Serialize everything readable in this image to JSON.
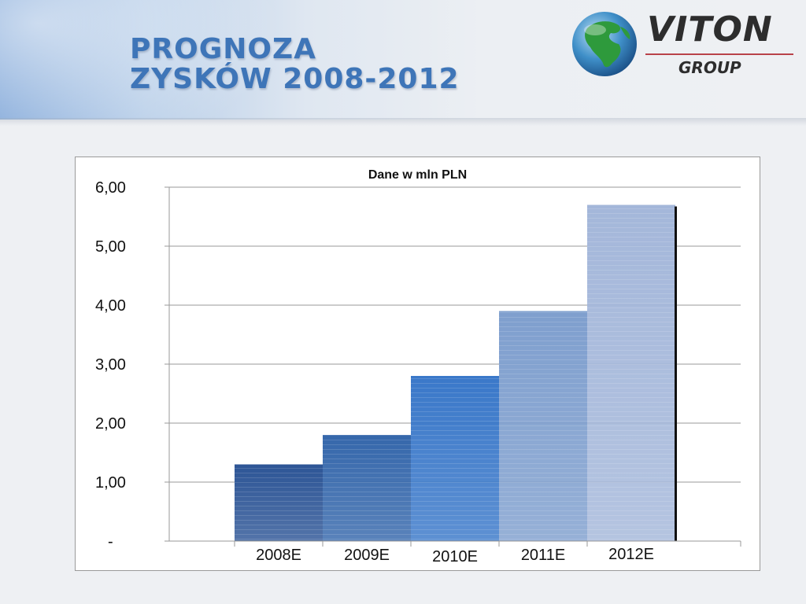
{
  "slide": {
    "title_line1": "PROGNOZA",
    "title_line2": "ZYSKÓW 2008-2012"
  },
  "logo": {
    "name": "VITON",
    "sub": "GROUP",
    "icon": "globe-icon"
  },
  "colors": {
    "title": "#3e75b8",
    "bars": [
      "#2d5596",
      "#3567ab",
      "#3a78c9",
      "#7f9fce",
      "#a4b7da"
    ]
  },
  "chart_data": {
    "type": "bar",
    "title": "Dane w mln PLN",
    "xlabel": "",
    "ylabel": "",
    "categories": [
      "2008E",
      "2009E",
      "2010E",
      "2011E",
      "2012E"
    ],
    "values": [
      1.3,
      1.8,
      2.8,
      3.9,
      5.7
    ],
    "ylim": [
      0,
      6
    ],
    "yticks": [
      0,
      1,
      2,
      3,
      4,
      5,
      6
    ],
    "ytick_labels": [
      "-",
      "1,00",
      "2,00",
      "3,00",
      "4,00",
      "5,00",
      "6,00"
    ],
    "grid": true,
    "legend": "none"
  }
}
